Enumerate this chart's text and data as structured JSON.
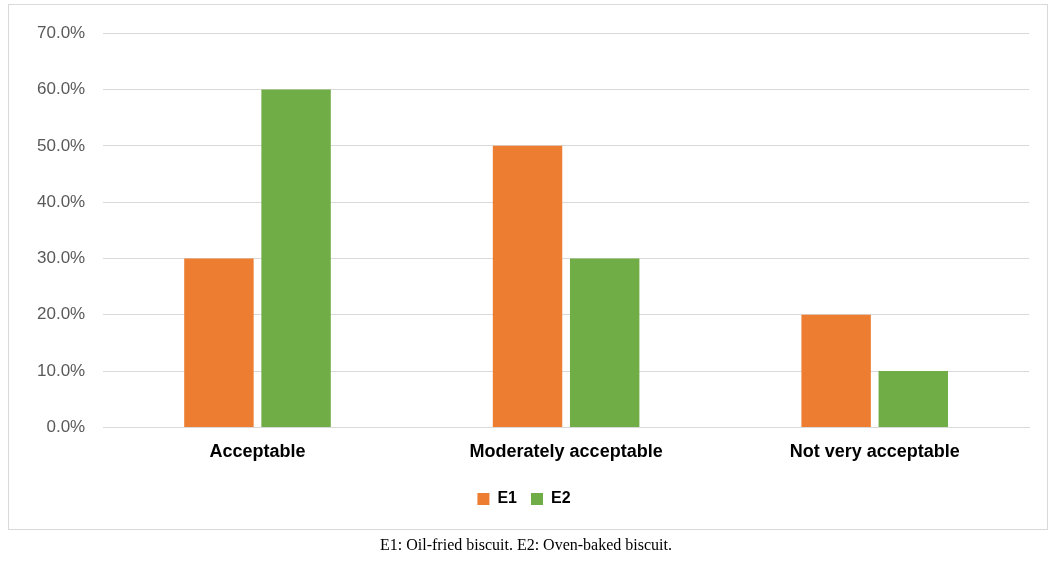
{
  "chart_data": {
    "type": "bar",
    "categories": [
      "Acceptable",
      "Moderately acceptable",
      "Not very acceptable"
    ],
    "series": [
      {
        "name": "E1",
        "color": "#ed7d31",
        "values": [
          30,
          50,
          20
        ]
      },
      {
        "name": "E2",
        "color": "#70ad47",
        "values": [
          60,
          30,
          10
        ]
      }
    ],
    "ylim": [
      0,
      70
    ],
    "yticks": [
      {
        "value": 0,
        "label": "0.0%"
      },
      {
        "value": 10,
        "label": "10.0%"
      },
      {
        "value": 20,
        "label": "20.0%"
      },
      {
        "value": 30,
        "label": "30.0%"
      },
      {
        "value": 40,
        "label": "40.0%"
      },
      {
        "value": 50,
        "label": "50.0%"
      },
      {
        "value": 60,
        "label": "60.0%"
      },
      {
        "value": 70,
        "label": "70.0%"
      }
    ],
    "grid": "y",
    "legend": "bottom",
    "annotations": [
      "E1: Oil-fried biscuit. E2: Oven-baked biscuit."
    ]
  }
}
